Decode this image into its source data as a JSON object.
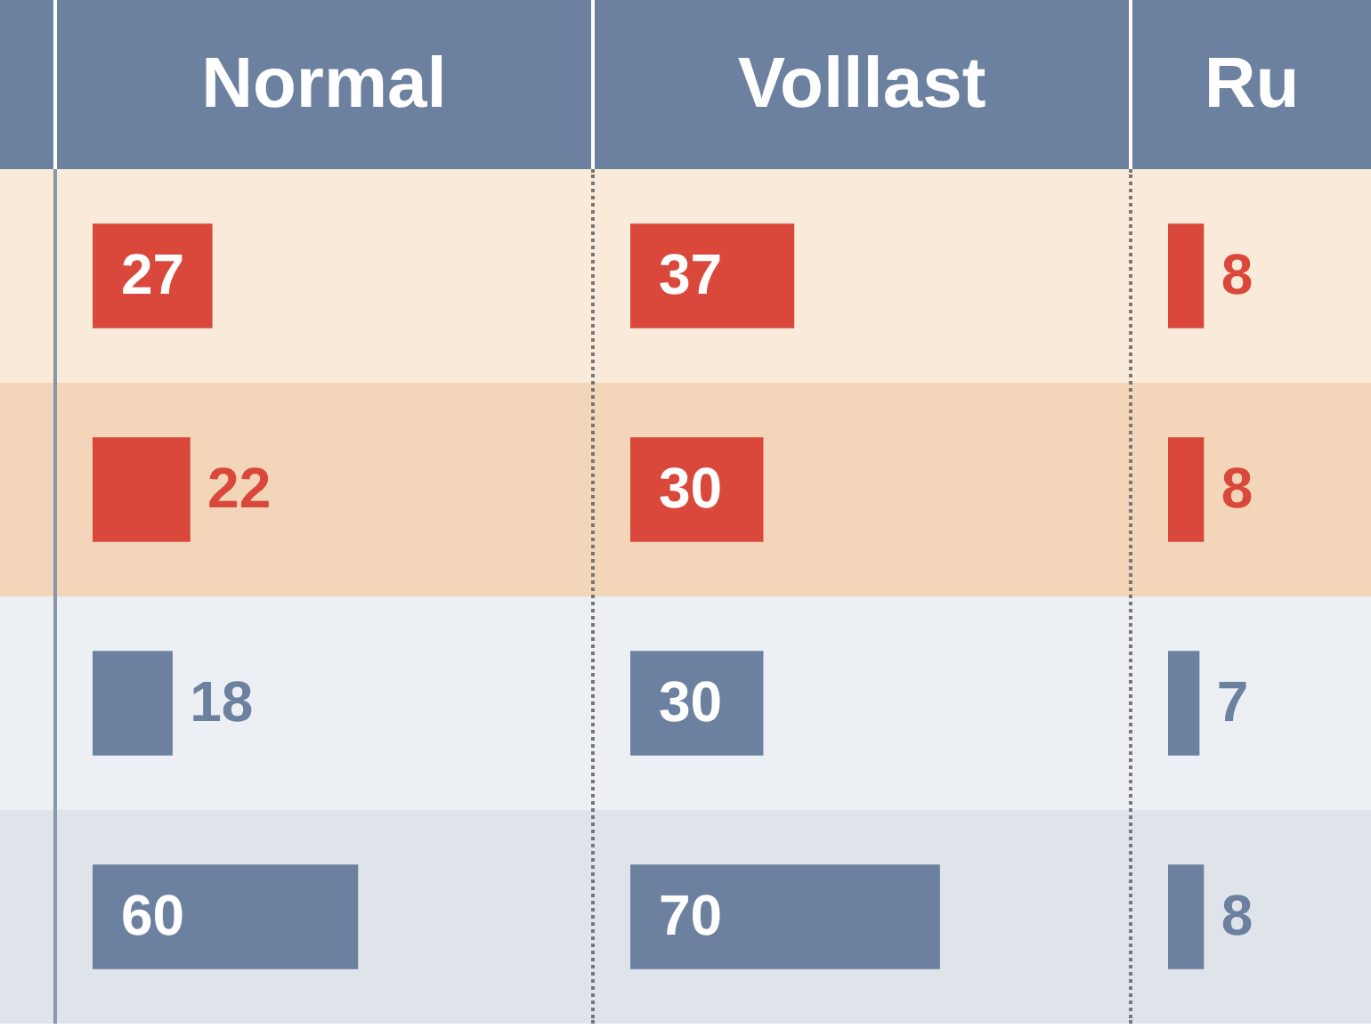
{
  "chart_data": [
    {
      "type": "bar",
      "orientation": "horizontal",
      "title": "Normal",
      "categories": [
        null,
        null,
        null,
        null
      ],
      "values": [
        27,
        22,
        18,
        60
      ],
      "colors": [
        "#d9483b",
        "#d9483b",
        "#6c819f",
        "#6c819f"
      ],
      "data_labels": true
    },
    {
      "type": "bar",
      "orientation": "horizontal",
      "title": "Volllast",
      "categories": [
        null,
        null,
        null,
        null
      ],
      "values": [
        37,
        30,
        30,
        70
      ],
      "colors": [
        "#d9483b",
        "#d9483b",
        "#6c819f",
        "#6c819f"
      ],
      "data_labels": true
    },
    {
      "type": "bar",
      "orientation": "horizontal",
      "title": "Ru",
      "categories": [
        null,
        null,
        null,
        null
      ],
      "values": [
        8,
        8,
        7,
        8
      ],
      "colors": [
        "#d9483b",
        "#d9483b",
        "#6c819f",
        "#6c819f"
      ],
      "data_labels": true
    }
  ]
}
